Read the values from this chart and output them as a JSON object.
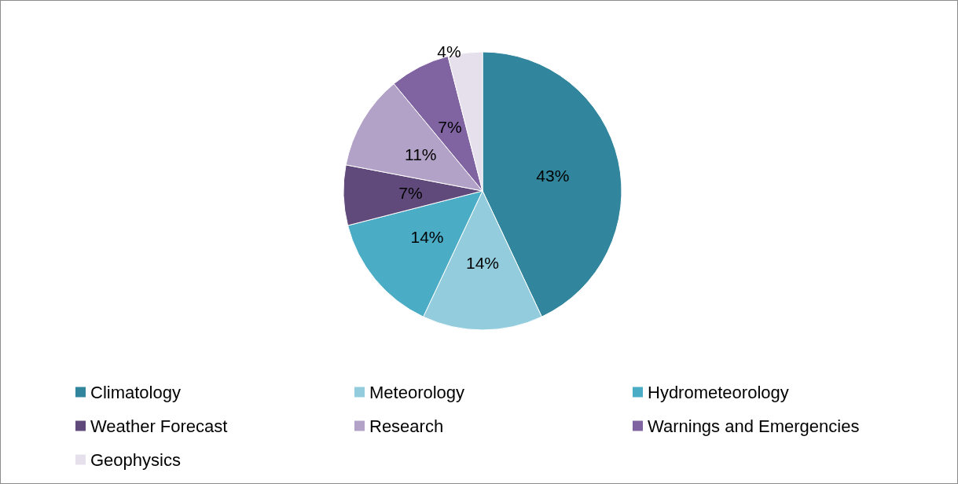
{
  "chart_data": {
    "type": "pie",
    "categories": [
      "Climatology",
      "Meteorology",
      "Hydrometeorology",
      "Weather Forecast",
      "Research",
      "Warnings and Emergencies",
      "Geophysics"
    ],
    "values": [
      43,
      14,
      14,
      7,
      11,
      7,
      4
    ],
    "value_labels": [
      "43%",
      "14%",
      "14%",
      "7%",
      "11%",
      "7%",
      "4%"
    ],
    "colors": [
      "#31859c",
      "#93cddd",
      "#4bacc6",
      "#604a7b",
      "#b3a2c7",
      "#8064a2",
      "#e6e0ec"
    ],
    "legend": "bottom"
  }
}
